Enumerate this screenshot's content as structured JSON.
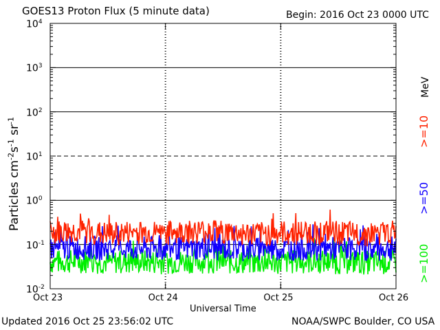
{
  "header": {
    "title": "GOES13 Proton Flux (5 minute data)",
    "begin": "Begin: 2016 Oct 23 0000 UTC"
  },
  "footer": {
    "updated": "Updated 2016 Oct 25 23:56:02 UTC",
    "credit": "NOAA/SWPC Boulder, CO USA"
  },
  "legend": {
    "unit": "MeV",
    "entries": [
      {
        "label": ">=10",
        "color": "#ff2200"
      },
      {
        "label": ">=50",
        "color": "#1100ff"
      },
      {
        "label": ">=100",
        "color": "#00ee00"
      }
    ]
  },
  "chart_data": {
    "type": "line",
    "title": "GOES13 Proton Flux (5 minute data)",
    "xlabel": "Universal Time",
    "ylabel": "Particles cm-2 s-1 sr-1",
    "yscale": "log",
    "ylim": [
      0.01,
      10000
    ],
    "x_ticks": [
      "Oct 23",
      "Oct 24",
      "Oct 25",
      "Oct 26"
    ],
    "y_ticks": [
      {
        "base": "10",
        "exp": "4",
        "value": 10000
      },
      {
        "base": "10",
        "exp": "3",
        "value": 1000
      },
      {
        "base": "10",
        "exp": "2",
        "value": 100
      },
      {
        "base": "10",
        "exp": "1",
        "value": 10
      },
      {
        "base": "10",
        "exp": "0",
        "value": 1
      },
      {
        "base": "10",
        "exp": "-1",
        "value": 0.1
      },
      {
        "base": "10",
        "exp": "-2",
        "value": 0.01
      }
    ],
    "thresholds": [
      {
        "value": 1000,
        "style": "solid"
      },
      {
        "value": 100,
        "style": "solid"
      },
      {
        "value": 10,
        "style": "dashed"
      },
      {
        "value": 1,
        "style": "solid"
      },
      {
        "value": 0.1,
        "style": "solid"
      }
    ],
    "x_start": "2016-10-23T00:00",
    "x_end": "2016-10-26T00:00",
    "series": [
      {
        "name": ">=10 MeV",
        "color": "#ff2200",
        "x": [
          "2016-10-23T00:00",
          "2016-10-23T06:00",
          "2016-10-23T12:00",
          "2016-10-23T18:00",
          "2016-10-24T00:00",
          "2016-10-24T06:00",
          "2016-10-24T12:00",
          "2016-10-24T18:00",
          "2016-10-25T00:00",
          "2016-10-25T06:00",
          "2016-10-25T12:00",
          "2016-10-25T18:00",
          "2016-10-26T00:00"
        ],
        "y": [
          0.18,
          0.2,
          0.17,
          0.19,
          0.18,
          0.2,
          0.19,
          0.17,
          0.18,
          0.19,
          0.18,
          0.17,
          0.19
        ]
      },
      {
        "name": ">=50 MeV",
        "color": "#1100ff",
        "x": [
          "2016-10-23T00:00",
          "2016-10-23T06:00",
          "2016-10-23T12:00",
          "2016-10-23T18:00",
          "2016-10-24T00:00",
          "2016-10-24T06:00",
          "2016-10-24T12:00",
          "2016-10-24T18:00",
          "2016-10-25T00:00",
          "2016-10-25T06:00",
          "2016-10-25T12:00",
          "2016-10-25T18:00",
          "2016-10-26T00:00"
        ],
        "y": [
          0.08,
          0.085,
          0.08,
          0.082,
          0.08,
          0.083,
          0.08,
          0.079,
          0.08,
          0.081,
          0.08,
          0.079,
          0.08
        ]
      },
      {
        "name": ">=100 MeV",
        "color": "#00ee00",
        "x": [
          "2016-10-23T00:00",
          "2016-10-23T06:00",
          "2016-10-23T12:00",
          "2016-10-23T18:00",
          "2016-10-24T00:00",
          "2016-10-24T06:00",
          "2016-10-24T12:00",
          "2016-10-24T18:00",
          "2016-10-25T00:00",
          "2016-10-25T06:00",
          "2016-10-25T12:00",
          "2016-10-25T18:00",
          "2016-10-26T00:00"
        ],
        "y": [
          0.04,
          0.042,
          0.04,
          0.041,
          0.04,
          0.042,
          0.04,
          0.039,
          0.04,
          0.041,
          0.04,
          0.039,
          0.04
        ]
      }
    ]
  }
}
